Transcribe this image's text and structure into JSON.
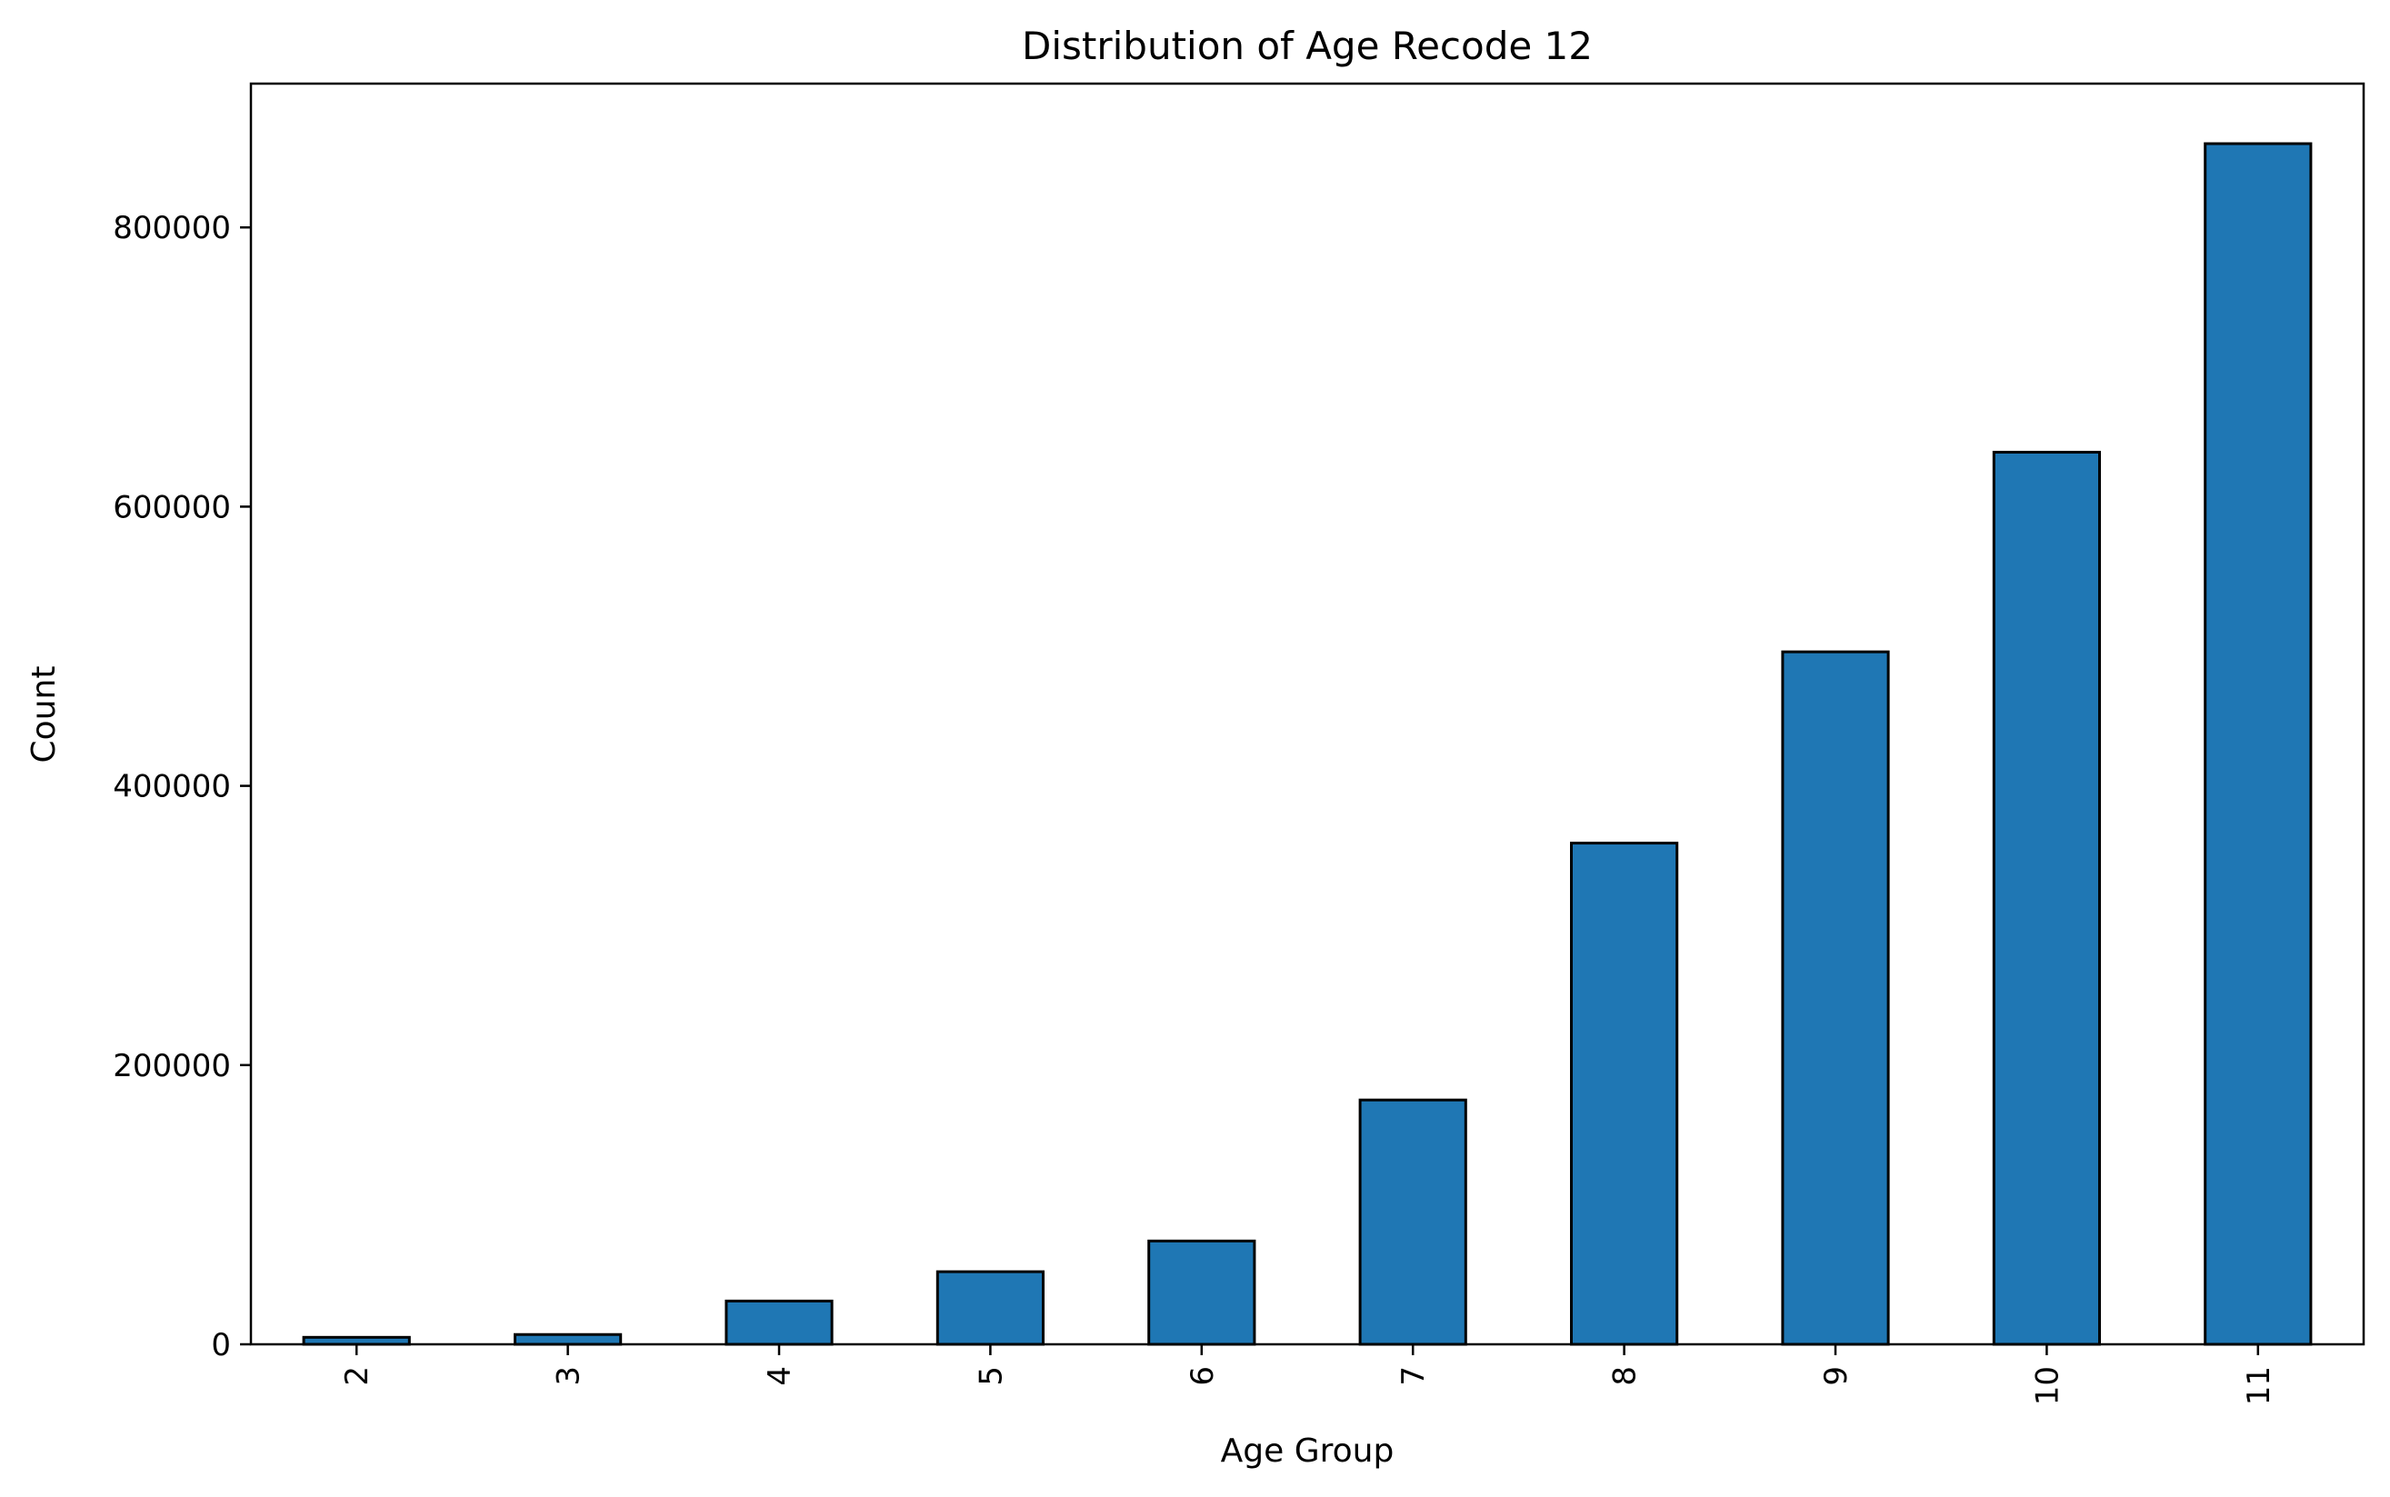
{
  "chart_data": {
    "type": "bar",
    "title": "Distribution of Age Recode 12",
    "xlabel": "Age Group",
    "ylabel": "Count",
    "categories": [
      "2",
      "3",
      "4",
      "5",
      "6",
      "7",
      "8",
      "9",
      "10",
      "11"
    ],
    "values": [
      5000,
      7000,
      31000,
      52000,
      74000,
      175000,
      359000,
      496000,
      639000,
      860000
    ],
    "ylim": [
      0,
      903000
    ],
    "yticks": [
      0,
      200000,
      400000,
      600000,
      800000
    ],
    "ytick_labels": [
      "0",
      "200000",
      "400000",
      "600000",
      "800000"
    ],
    "bar_color": "#1f77b4",
    "bar_edge_color": "#000000",
    "grid": false,
    "legend": "none"
  }
}
